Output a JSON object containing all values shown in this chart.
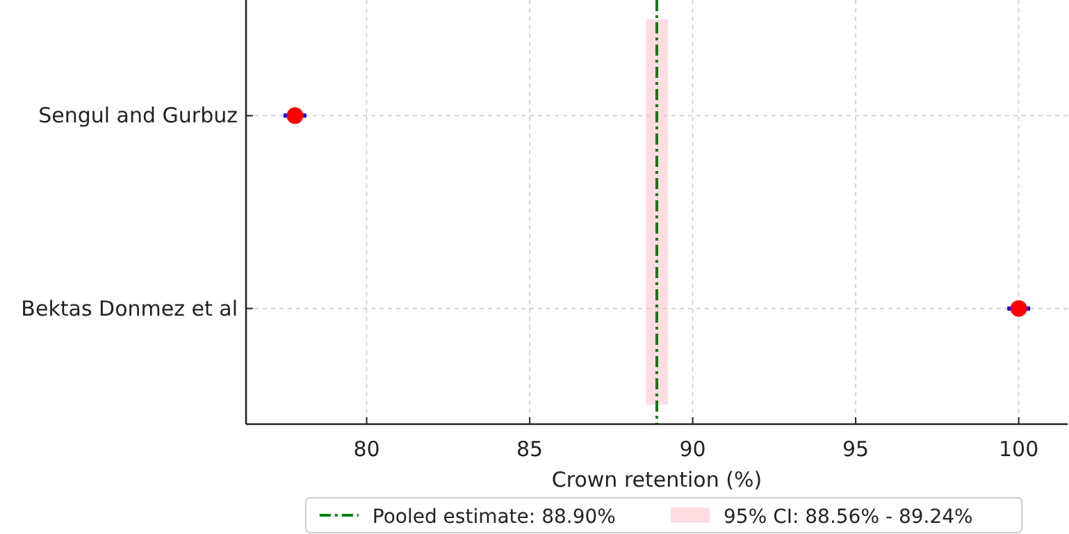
{
  "chart_data": {
    "type": "scatter",
    "orientation": "horizontal",
    "categories": [
      "Sengul and Gurbuz",
      "Bektas Donmez et al"
    ],
    "series": [
      {
        "values": [
          77.8,
          100
        ],
        "errors": [
          0.35,
          0.35
        ],
        "color": "#ff0000"
      }
    ],
    "xlabel": "Crown retention (%)",
    "xlim": [
      76.3,
      101.5
    ],
    "xticks": [
      80,
      85,
      90,
      95,
      100
    ],
    "grid": true,
    "marker": "circle",
    "legend": "bottom",
    "ref_lines": [
      {
        "axis": "x",
        "value": 88.9,
        "label": "Pooled estimate: 88.90%",
        "color": "#008000",
        "line_style": "dashdot"
      }
    ],
    "bands": [
      {
        "axis": "x",
        "from": 88.56,
        "to": 89.24,
        "label": "95% CI: 88.56% - 89.24%",
        "color": "#ffc0cb"
      }
    ]
  }
}
